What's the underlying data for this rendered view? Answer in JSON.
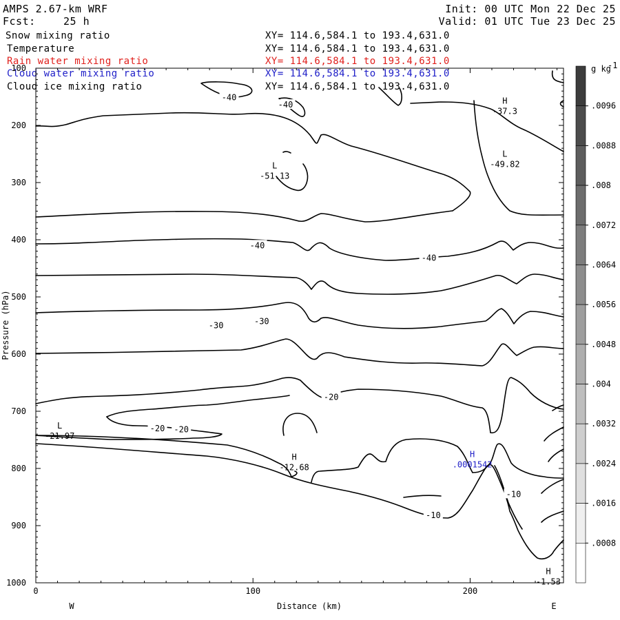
{
  "header": {
    "model": "AMPS 2.67-km WRF",
    "init": "Init: 00 UTC Mon 22 Dec 25",
    "fcst_label": "Fcst:",
    "fcst_value": "25 h",
    "valid": "Valid: 01 UTC Tue 23 Dec 25"
  },
  "fields": [
    {
      "name": "Snow mixing ratio",
      "xy": "XY= 114.6,584.1 to 193.4,631.0",
      "color": "#000000"
    },
    {
      "name": "Temperature",
      "xy": "XY= 114.6,584.1 to 193.4,631.0",
      "color": "#000000"
    },
    {
      "name": "Rain water mixing ratio",
      "xy": "XY= 114.6,584.1 to 193.4,631.0",
      "color": "#e0201c"
    },
    {
      "name": "Cloud water mixing ratio",
      "xy": "XY= 114.6,584.1 to 193.4,631.0",
      "color": "#2020c8"
    },
    {
      "name": "Cloud ice mixing ratio",
      "xy": "XY= 114.6,584.1 to 193.4,631.0",
      "color": "#000000"
    }
  ],
  "chart_data": {
    "type": "contour",
    "xlabel": "Distance (km)",
    "ylabel": "Pressure (hPa)",
    "x_ticks": [
      0,
      100,
      200
    ],
    "xlim": [
      0,
      243
    ],
    "y_ticks": [
      100,
      200,
      300,
      400,
      500,
      600,
      700,
      800,
      900,
      1000
    ],
    "ylim": [
      1000,
      100
    ],
    "west_label": "W",
    "east_label": "E",
    "colorbar": {
      "unit": "g kg",
      "unit_exp": "-1",
      "ticks": [
        ".0096",
        ".0088",
        ".008",
        ".0072",
        ".0064",
        ".0056",
        ".0048",
        ".004",
        ".0032",
        ".0024",
        ".0016",
        ".0008"
      ]
    },
    "contour_labels": [
      {
        "text": "-40",
        "x": 89,
        "p": 151
      },
      {
        "text": "-40",
        "x": 115,
        "p": 164
      },
      {
        "text": "-40",
        "x": 102,
        "p": 410
      },
      {
        "text": "-40",
        "x": 181,
        "p": 432
      },
      {
        "text": "-30",
        "x": 83,
        "p": 550
      },
      {
        "text": "-30",
        "x": 104,
        "p": 543
      },
      {
        "text": "-20",
        "x": 136,
        "p": 675
      },
      {
        "text": "-20",
        "x": 56,
        "p": 730
      },
      {
        "text": "-20",
        "x": 67,
        "p": 732
      },
      {
        "text": "-10",
        "x": 183,
        "p": 882
      },
      {
        "text": "-10",
        "x": 220,
        "p": 845
      }
    ],
    "extrema": [
      {
        "type": "H",
        "value": "-37.3",
        "x": 216,
        "p": 162,
        "color": "#000000"
      },
      {
        "type": "L",
        "value": "-49.82",
        "x": 216,
        "p": 255,
        "color": "#000000"
      },
      {
        "type": "L",
        "value": "-51.13",
        "x": 110,
        "p": 275,
        "color": "#000000"
      },
      {
        "type": "L",
        "value": "-21.97",
        "x": 11,
        "p": 730,
        "color": "#000000"
      },
      {
        "type": "H",
        "value": "-12.68",
        "x": 119,
        "p": 785,
        "color": "#000000"
      },
      {
        "type": "H",
        "value": ".0001542",
        "x": 201,
        "p": 780,
        "color": "#2020c8"
      },
      {
        "type": "H",
        "value": "-1.53",
        "x": 236,
        "p": 985,
        "color": "#000000"
      }
    ]
  }
}
